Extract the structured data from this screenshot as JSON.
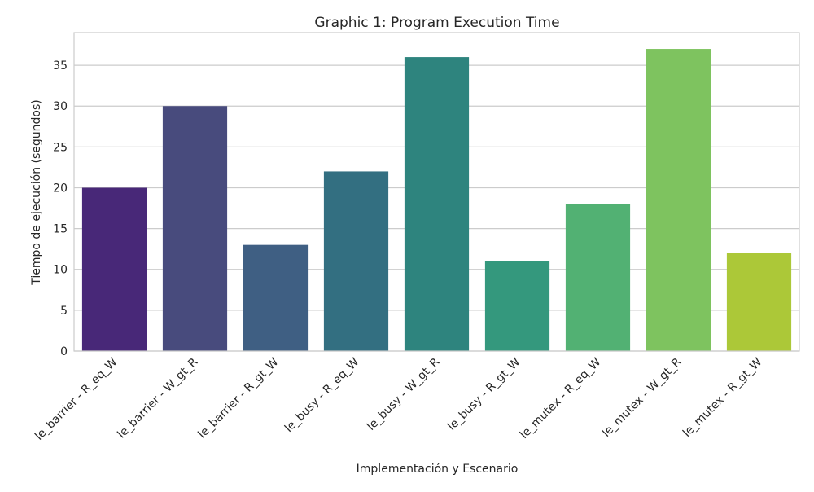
{
  "chart_data": {
    "type": "bar",
    "title": "Graphic 1: Program Execution Time",
    "xlabel": "Implementación y Escenario",
    "ylabel": "Tiempo de ejecución (segundos)",
    "categories": [
      "le_barrier - R_eq_W",
      "le_barrier - W_gt_R",
      "le_barrier - R_gt_W",
      "le_busy - R_eq_W",
      "le_busy - W_gt_R",
      "le_busy - R_gt_W",
      "le_mutex - R_eq_W",
      "le_mutex - W_gt_R",
      "le_mutex - R_gt_W"
    ],
    "values": [
      20,
      30,
      13,
      22,
      36,
      11,
      18,
      37,
      12
    ],
    "colors": [
      "#482878",
      "#484b7d",
      "#3f5f83",
      "#336f81",
      "#2e847e",
      "#34987d",
      "#52b173",
      "#7ec35f",
      "#acc838"
    ],
    "ylim": [
      0,
      39
    ],
    "yticks": [
      0,
      5,
      10,
      15,
      20,
      25,
      30,
      35
    ],
    "grid": true
  }
}
